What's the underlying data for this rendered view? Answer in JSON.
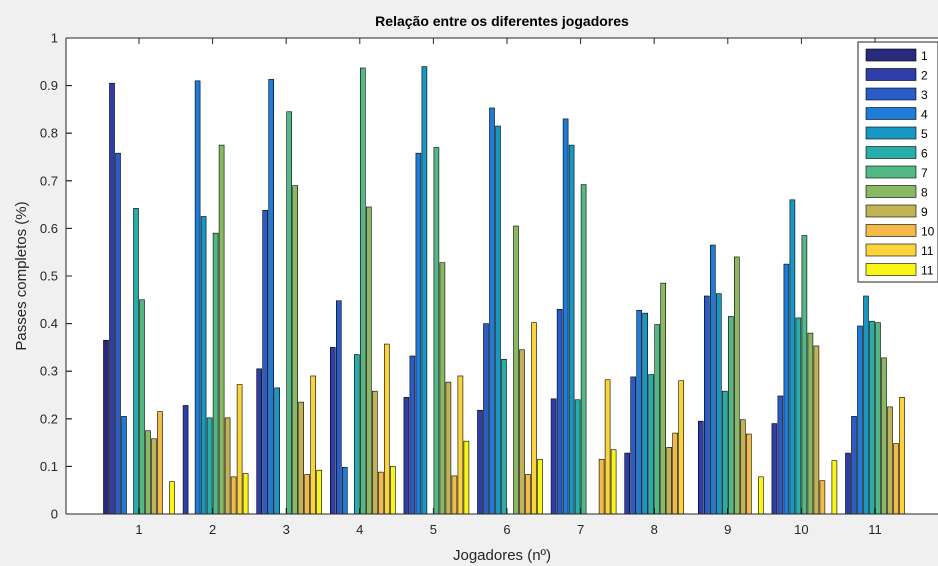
{
  "chart_data": {
    "type": "bar",
    "title": "Relação entre os diferentes jogadores",
    "xlabel": "Jogadores (nº)",
    "ylabel": "Passes completos (%)",
    "ylim": [
      0,
      1
    ],
    "yticks": [
      "0",
      "0.1",
      "0.2",
      "0.3",
      "0.4",
      "0.5",
      "0.6",
      "0.7",
      "0.8",
      "0.9",
      "1"
    ],
    "categories": [
      "1",
      "2",
      "3",
      "4",
      "5",
      "6",
      "7",
      "8",
      "9",
      "10",
      "11"
    ],
    "grid": false,
    "legend_position": "top-right",
    "series": [
      {
        "name": "1",
        "color": "#282a7a",
        "values": [
          0.365,
          0.0,
          0.0,
          0.0,
          0.0,
          0.0,
          0.0,
          0.0,
          0.0,
          0.0,
          0.0
        ]
      },
      {
        "name": "2",
        "color": "#2e3da8",
        "values": [
          0.905,
          0.228,
          0.305,
          0.35,
          0.245,
          0.218,
          0.242,
          0.128,
          0.195,
          0.19,
          0.128
        ]
      },
      {
        "name": "3",
        "color": "#2a5cc8",
        "values": [
          0.758,
          0.0,
          0.638,
          0.448,
          0.332,
          0.4,
          0.43,
          0.288,
          0.458,
          0.248,
          0.205
        ]
      },
      {
        "name": "4",
        "color": "#1f7bd8",
        "values": [
          0.205,
          0.91,
          0.913,
          0.098,
          0.758,
          0.853,
          0.83,
          0.428,
          0.565,
          0.525,
          0.395
        ]
      },
      {
        "name": "5",
        "color": "#1797c4",
        "values": [
          0.0,
          0.625,
          0.265,
          0.0,
          0.94,
          0.815,
          0.775,
          0.422,
          0.463,
          0.66,
          0.458
        ]
      },
      {
        "name": "6",
        "color": "#27aeab",
        "values": [
          0.642,
          0.202,
          0.0,
          0.335,
          0.0,
          0.325,
          0.24,
          0.293,
          0.258,
          0.412,
          0.405
        ]
      },
      {
        "name": "7",
        "color": "#54b884",
        "values": [
          0.45,
          0.59,
          0.845,
          0.937,
          0.77,
          0.0,
          0.692,
          0.398,
          0.415,
          0.585,
          0.402
        ]
      },
      {
        "name": "8",
        "color": "#89b962",
        "values": [
          0.175,
          0.775,
          0.69,
          0.645,
          0.528,
          0.605,
          0.0,
          0.485,
          0.54,
          0.38,
          0.328
        ]
      },
      {
        "name": "9",
        "color": "#c2b455",
        "values": [
          0.158,
          0.202,
          0.235,
          0.258,
          0.277,
          0.345,
          0.0,
          0.14,
          0.198,
          0.353,
          0.225
        ]
      },
      {
        "name": "10",
        "color": "#f4ba48",
        "values": [
          0.215,
          0.078,
          0.083,
          0.088,
          0.08,
          0.083,
          0.115,
          0.17,
          0.168,
          0.07,
          0.148
        ]
      },
      {
        "name": "11",
        "color": "#fbd43b",
        "values": [
          0.0,
          0.272,
          0.29,
          0.357,
          0.29,
          0.402,
          0.282,
          0.28,
          0.0,
          0.0,
          0.245
        ]
      },
      {
        "name": "11",
        "color": "#f9f516",
        "values": [
          0.068,
          0.085,
          0.092,
          0.1,
          0.153,
          0.115,
          0.135,
          0.0,
          0.078,
          0.112,
          0.0
        ]
      }
    ]
  }
}
